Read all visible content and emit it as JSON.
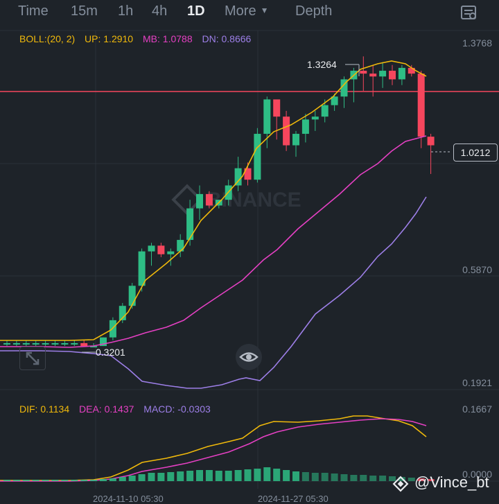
{
  "header": {
    "tabs": [
      {
        "label": "Time",
        "active": false
      },
      {
        "label": "15m",
        "active": false
      },
      {
        "label": "1h",
        "active": false
      },
      {
        "label": "4h",
        "active": false
      },
      {
        "label": "1D",
        "active": true
      },
      {
        "label": "More",
        "active": false
      },
      {
        "label": "Depth",
        "active": false
      }
    ]
  },
  "main_chart": {
    "indicator_label": "BOLL:(20, 2)",
    "up_label": "UP: 1.2910",
    "mb_label": "MB: 1.0788",
    "dn_label": "DN: 0.8666",
    "axis_labels": [
      "1.3768",
      "0.5870",
      "0.1921"
    ],
    "last_price": "1.0212",
    "high_annotation": "1.3264",
    "low_annotation": "0.3201",
    "watermark_text": "BINANCE"
  },
  "macd": {
    "dif_label": "DIF: 0.1134",
    "dea_label": "DEA: 0.1437",
    "macd_label": "MACD: -0.0303",
    "axis_labels": [
      "0.1667",
      "0.0000"
    ]
  },
  "dates": [
    "2024-11-10 05:30",
    "2024-11-27 05:30"
  ],
  "credit": "@Vince_bt",
  "colors": {
    "up": "#2ebd85",
    "down": "#f6465d",
    "boll_up": "#f0b90b",
    "boll_mb": "#e540c3",
    "boll_dn": "#9d7fe8",
    "dif": "#f0b90b",
    "dea": "#e540c3",
    "hline": "#f6465d"
  },
  "chart_data": {
    "type": "candlestick",
    "series_ohlc": [
      [
        0.33,
        0.34,
        0.32,
        0.33
      ],
      [
        0.33,
        0.34,
        0.32,
        0.33
      ],
      [
        0.33,
        0.34,
        0.32,
        0.33
      ],
      [
        0.33,
        0.34,
        0.32,
        0.33
      ],
      [
        0.33,
        0.34,
        0.32,
        0.33
      ],
      [
        0.33,
        0.34,
        0.32,
        0.33
      ],
      [
        0.33,
        0.34,
        0.32,
        0.33
      ],
      [
        0.33,
        0.34,
        0.32,
        0.33
      ],
      [
        0.33,
        0.34,
        0.32,
        0.32
      ],
      [
        0.32,
        0.33,
        0.32,
        0.32
      ],
      [
        0.32,
        0.35,
        0.32,
        0.35
      ],
      [
        0.35,
        0.42,
        0.34,
        0.41
      ],
      [
        0.41,
        0.47,
        0.4,
        0.46
      ],
      [
        0.46,
        0.54,
        0.45,
        0.53
      ],
      [
        0.53,
        0.66,
        0.51,
        0.65
      ],
      [
        0.65,
        0.68,
        0.6,
        0.67
      ],
      [
        0.67,
        0.68,
        0.63,
        0.64
      ],
      [
        0.64,
        0.66,
        0.6,
        0.65
      ],
      [
        0.65,
        0.71,
        0.63,
        0.69
      ],
      [
        0.69,
        0.83,
        0.67,
        0.8
      ],
      [
        0.8,
        0.88,
        0.76,
        0.85
      ],
      [
        0.85,
        0.86,
        0.8,
        0.81
      ],
      [
        0.81,
        0.83,
        0.8,
        0.83
      ],
      [
        0.83,
        0.9,
        0.81,
        0.88
      ],
      [
        0.88,
        0.98,
        0.86,
        0.94
      ],
      [
        0.94,
        0.96,
        0.88,
        0.9
      ],
      [
        0.9,
        1.08,
        0.89,
        1.06
      ],
      [
        1.06,
        1.19,
        1.01,
        1.18
      ],
      [
        1.18,
        1.16,
        1.04,
        1.12
      ],
      [
        1.12,
        1.14,
        1.0,
        1.02
      ],
      [
        1.02,
        1.07,
        0.98,
        1.06
      ],
      [
        1.06,
        1.13,
        1.03,
        1.11
      ],
      [
        1.11,
        1.14,
        1.07,
        1.12
      ],
      [
        1.12,
        1.18,
        1.1,
        1.16
      ],
      [
        1.16,
        1.2,
        1.14,
        1.19
      ],
      [
        1.19,
        1.26,
        1.15,
        1.25
      ],
      [
        1.25,
        1.29,
        1.17,
        1.28
      ],
      [
        1.28,
        1.33,
        1.21,
        1.27
      ],
      [
        1.27,
        1.3,
        1.19,
        1.26
      ],
      [
        1.26,
        1.31,
        1.22,
        1.28
      ],
      [
        1.28,
        1.3,
        1.23,
        1.25
      ],
      [
        1.25,
        1.3,
        1.23,
        1.29
      ],
      [
        1.29,
        1.3,
        1.26,
        1.27
      ],
      [
        1.27,
        1.28,
        1.01,
        1.05
      ],
      [
        1.05,
        1.06,
        0.92,
        1.02
      ]
    ],
    "ylim": [
      0.1921,
      1.3768
    ]
  }
}
